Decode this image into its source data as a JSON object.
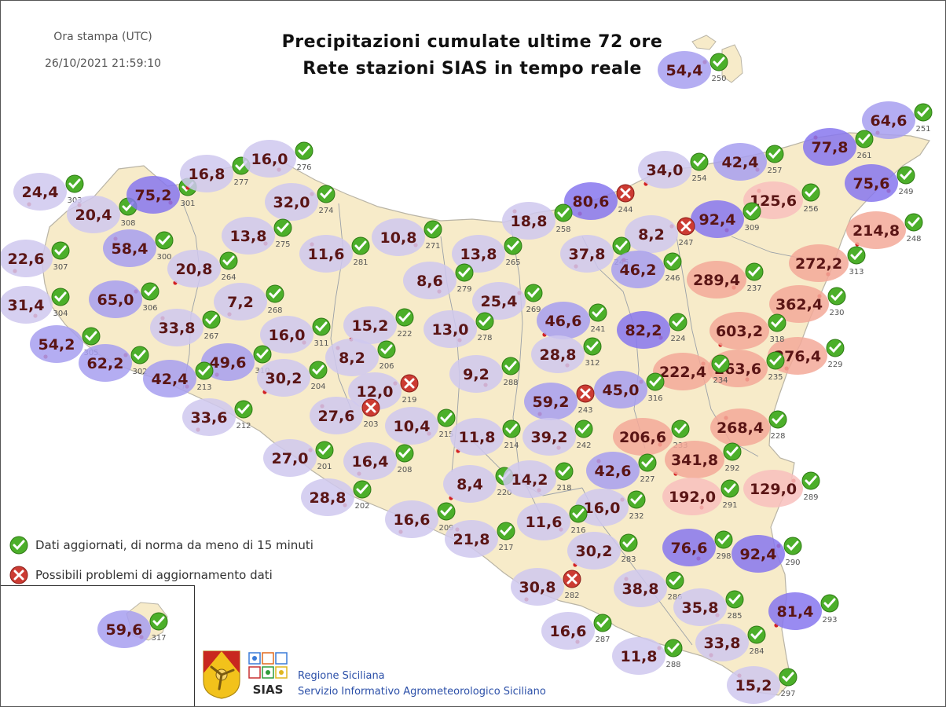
{
  "header": {
    "print_label": "Ora stampa (UTC)",
    "print_datetime": "26/10/2021 21:59:10",
    "title_line1": "Precipitazioni cumulate ultime 72 ore",
    "title_line2": "Rete stazioni SIAS in tempo reale"
  },
  "legend": {
    "ok_label": "Dati aggiornati, di norma da meno di 15 minuti",
    "problem_label": "Possibili problemi di aggiornamento dati"
  },
  "footer": {
    "org_line1": "Regione Siciliana",
    "org_line2": "Servizio Informativo Agrometeorologico Siciliano",
    "logo_text": "SIAS"
  },
  "colors": {
    "land": "#f7ebc9",
    "land_stroke": "#b9b4a6",
    "bubble_light": "#cfc8ee",
    "bubble_medium": "#a79ff0",
    "bubble_dark": "#8777ee",
    "bubble_high": "#f3a999",
    "bubble_high_light": "#f8c0bd",
    "status_ok": "#4caf2a",
    "status_problem": "#cc3b33",
    "value_text": "#5a1515",
    "station_dot": "#d22222"
  },
  "stations": [
    {
      "id": "250",
      "value": "54,4",
      "status": "ok"
    },
    {
      "id": "251",
      "value": "64,6",
      "status": "ok"
    },
    {
      "id": "261",
      "value": "77,8",
      "status": "ok"
    },
    {
      "id": "249",
      "value": "75,6",
      "status": "ok"
    },
    {
      "id": "248",
      "value": "214,8",
      "status": "ok"
    },
    {
      "id": "313",
      "value": "272,2",
      "status": "ok"
    },
    {
      "id": "230",
      "value": "362,4",
      "status": "ok"
    },
    {
      "id": "229",
      "value": "276,4",
      "status": "ok"
    },
    {
      "id": "256",
      "value": "125,6",
      "status": "ok"
    },
    {
      "id": "257",
      "value": "42,4",
      "status": "ok"
    },
    {
      "id": "254",
      "value": "34,0",
      "status": "ok"
    },
    {
      "id": "309",
      "value": "92,4",
      "status": "ok"
    },
    {
      "id": "247",
      "value": "8,2",
      "status": "problem"
    },
    {
      "id": "244",
      "value": "80,6",
      "status": "problem"
    },
    {
      "id": "258",
      "value": "18,8",
      "status": "ok"
    },
    {
      "id": "237",
      "value": "289,4",
      "status": "ok"
    },
    {
      "id": "318",
      "value": "603,2",
      "status": "ok"
    },
    {
      "id": "235",
      "value": "263,6",
      "status": "ok"
    },
    {
      "id": "234",
      "value": "222,4",
      "status": "ok"
    },
    {
      "id": "245",
      "value": "37,8",
      "status": "ok"
    },
    {
      "id": "246",
      "value": "46,2",
      "status": "ok"
    },
    {
      "id": "224",
      "value": "82,2",
      "status": "ok"
    },
    {
      "id": "241",
      "value": "46,6",
      "status": "ok"
    },
    {
      "id": "312",
      "value": "28,8",
      "status": "ok"
    },
    {
      "id": "316",
      "value": "45,0",
      "status": "ok"
    },
    {
      "id": "243",
      "value": "59,2",
      "status": "problem"
    },
    {
      "id": "228",
      "value": "268,4",
      "status": "ok"
    },
    {
      "id": "233",
      "value": "206,6",
      "status": "ok"
    },
    {
      "id": "292",
      "value": "341,8",
      "status": "ok"
    },
    {
      "id": "291",
      "value": "192,0",
      "status": "ok"
    },
    {
      "id": "289",
      "value": "129,0",
      "status": "ok"
    },
    {
      "id": "303",
      "value": "24,4",
      "status": "ok"
    },
    {
      "id": "308",
      "value": "20,4",
      "status": "ok"
    },
    {
      "id": "301",
      "value": "75,2",
      "status": "ok"
    },
    {
      "id": "277",
      "value": "16,8",
      "status": "ok"
    },
    {
      "id": "276",
      "value": "16,0",
      "status": "ok"
    },
    {
      "id": "274",
      "value": "32,0",
      "status": "ok"
    },
    {
      "id": "307",
      "value": "22,6",
      "status": "ok"
    },
    {
      "id": "300",
      "value": "58,4",
      "status": "ok"
    },
    {
      "id": "275",
      "value": "13,8",
      "status": "ok"
    },
    {
      "id": "264",
      "value": "20,8",
      "status": "ok"
    },
    {
      "id": "304",
      "value": "31,4",
      "status": "ok"
    },
    {
      "id": "306",
      "value": "65,0",
      "status": "ok"
    },
    {
      "id": "268",
      "value": "7,2",
      "status": "ok"
    },
    {
      "id": "281",
      "value": "11,6",
      "status": "ok"
    },
    {
      "id": "271",
      "value": "10,8",
      "status": "ok"
    },
    {
      "id": "265",
      "value": "13,8",
      "status": "ok"
    },
    {
      "id": "279",
      "value": "8,6",
      "status": "ok"
    },
    {
      "id": "269",
      "value": "25,4",
      "status": "ok"
    },
    {
      "id": "305",
      "value": "54,2",
      "status": "ok"
    },
    {
      "id": "267",
      "value": "33,8",
      "status": "ok"
    },
    {
      "id": "311",
      "value": "16,0",
      "status": "ok"
    },
    {
      "id": "222",
      "value": "15,2",
      "status": "ok"
    },
    {
      "id": "278",
      "value": "13,0",
      "status": "ok"
    },
    {
      "id": "302",
      "value": "62,2",
      "status": "ok"
    },
    {
      "id": "310",
      "value": "49,6",
      "status": "ok"
    },
    {
      "id": "206",
      "value": "8,2",
      "status": "ok"
    },
    {
      "id": "213",
      "value": "42,4",
      "status": "ok"
    },
    {
      "id": "204",
      "value": "30,2",
      "status": "ok"
    },
    {
      "id": "288",
      "value": "9,2",
      "status": "ok"
    },
    {
      "id": "219",
      "value": "12,0",
      "status": "problem"
    },
    {
      "id": "212",
      "value": "33,6",
      "status": "ok"
    },
    {
      "id": "203",
      "value": "27,6",
      "status": "problem"
    },
    {
      "id": "215",
      "value": "10,4",
      "status": "ok"
    },
    {
      "id": "214",
      "value": "11,8",
      "status": "ok"
    },
    {
      "id": "242",
      "value": "39,2",
      "status": "ok"
    },
    {
      "id": "201",
      "value": "27,0",
      "status": "ok"
    },
    {
      "id": "208",
      "value": "16,4",
      "status": "ok"
    },
    {
      "id": "227",
      "value": "42,6",
      "status": "ok"
    },
    {
      "id": "202",
      "value": "28,8",
      "status": "ok"
    },
    {
      "id": "220",
      "value": "8,4",
      "status": "ok"
    },
    {
      "id": "218",
      "value": "14,2",
      "status": "ok"
    },
    {
      "id": "232",
      "value": "16,0",
      "status": "ok"
    },
    {
      "id": "209",
      "value": "16,6",
      "status": "ok"
    },
    {
      "id": "217",
      "value": "21,8",
      "status": "ok"
    },
    {
      "id": "216",
      "value": "11,6",
      "status": "ok"
    },
    {
      "id": "283",
      "value": "30,2",
      "status": "ok"
    },
    {
      "id": "298",
      "value": "76,6",
      "status": "ok"
    },
    {
      "id": "290",
      "value": "92,4",
      "status": "ok"
    },
    {
      "id": "282",
      "value": "30,8",
      "status": "problem"
    },
    {
      "id": "286",
      "value": "38,8",
      "status": "ok"
    },
    {
      "id": "285",
      "value": "35,8",
      "status": "ok"
    },
    {
      "id": "293",
      "value": "81,4",
      "status": "ok"
    },
    {
      "id": "287",
      "value": "16,6",
      "status": "ok"
    },
    {
      "id": "288",
      "value": "11,8",
      "status": "ok"
    },
    {
      "id": "284",
      "value": "33,8",
      "status": "ok"
    },
    {
      "id": "297",
      "value": "15,2",
      "status": "ok"
    },
    {
      "id": "317",
      "value": "59,6",
      "status": "ok"
    }
  ]
}
